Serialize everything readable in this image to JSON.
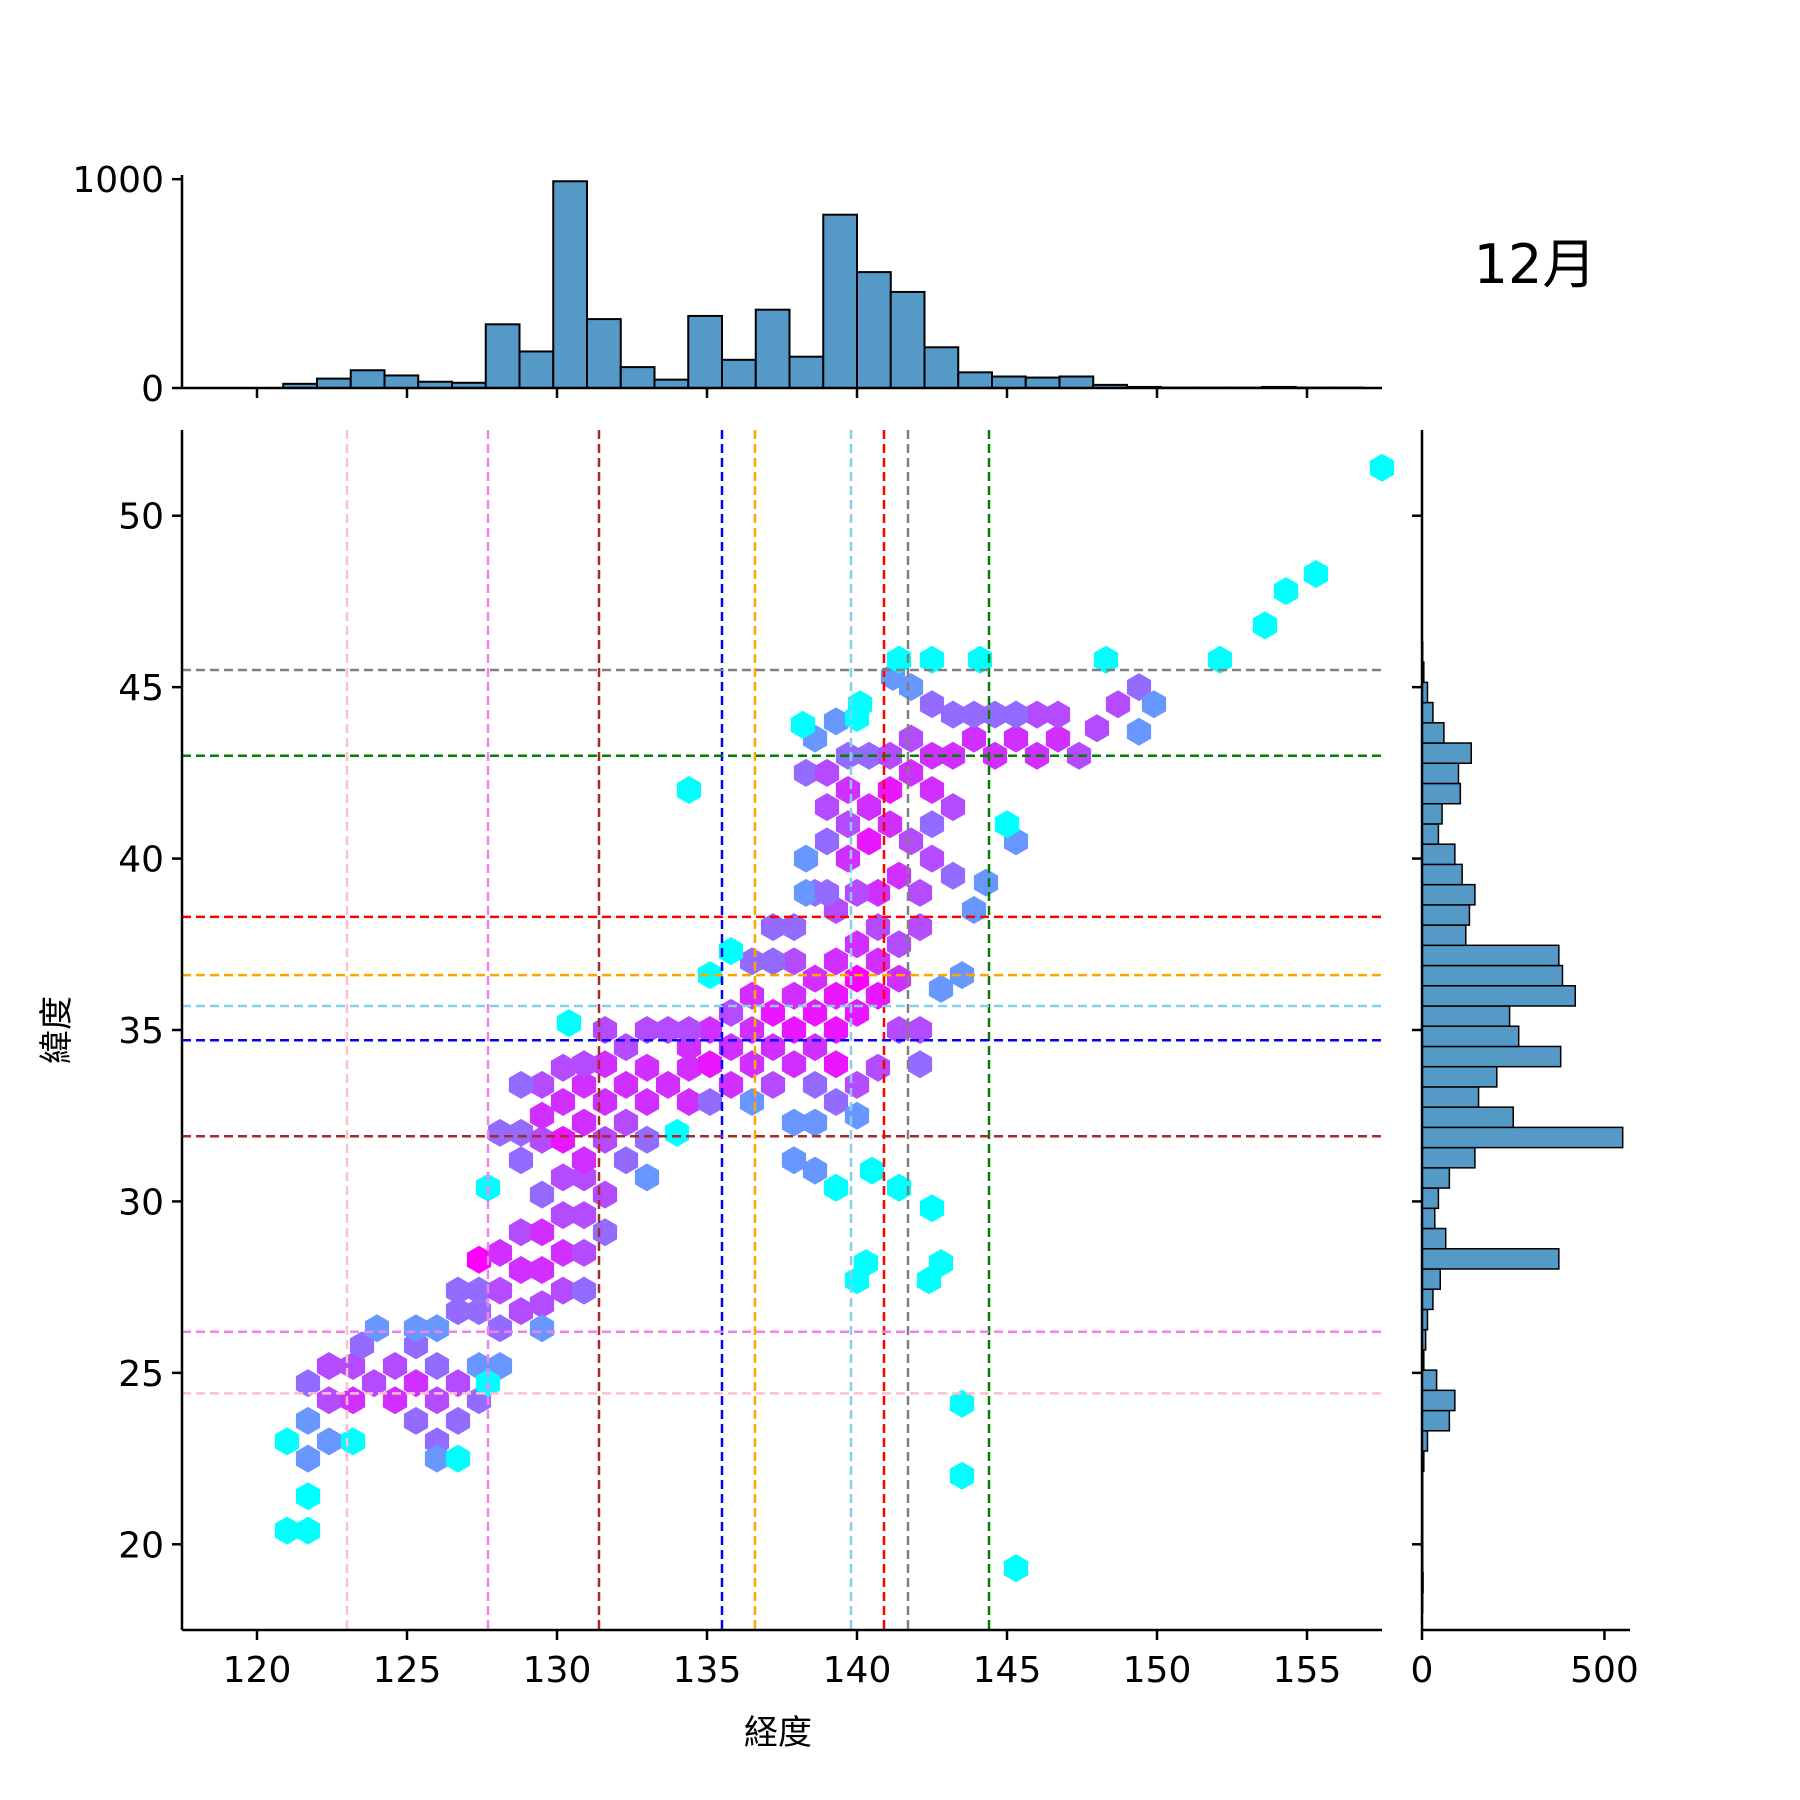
{
  "chart_data": {
    "type": "hexbin-jointplot",
    "title": "12月",
    "xlabel": "経度",
    "ylabel": "緯度",
    "xlim": [
      117.5,
      157.5
    ],
    "ylim": [
      17.5,
      52.5
    ],
    "xticks": [
      120,
      125,
      130,
      135,
      140,
      145,
      150,
      155
    ],
    "yticks": [
      20,
      25,
      30,
      35,
      40,
      45,
      50
    ],
    "top_hist": {
      "bin_start": 117.5,
      "bin_width": 1.125,
      "counts": [
        0,
        0,
        0,
        20,
        45,
        85,
        60,
        30,
        25,
        305,
        175,
        990,
        330,
        100,
        40,
        345,
        135,
        375,
        150,
        830,
        555,
        460,
        195,
        75,
        55,
        50,
        55,
        15,
        5,
        2,
        2,
        2,
        5,
        2,
        2,
        2
      ],
      "yticks": [
        0,
        1000
      ],
      "ylim": [
        0,
        1020
      ]
    },
    "right_hist": {
      "bin_start": 18.0,
      "bin_width": 0.59,
      "counts": [
        2,
        3,
        2,
        2,
        2,
        2,
        2,
        5,
        15,
        75,
        90,
        40,
        5,
        10,
        15,
        30,
        50,
        375,
        65,
        35,
        45,
        75,
        145,
        550,
        250,
        155,
        205,
        380,
        265,
        240,
        420,
        385,
        375,
        120,
        130,
        145,
        110,
        90,
        45,
        55,
        105,
        100,
        135,
        60,
        30,
        15,
        5,
        2
      ],
      "xticks": [
        0,
        500
      ],
      "xlim": [
        0,
        570
      ]
    },
    "hexbin": {
      "gridsize": 40,
      "colormap": [
        "#00ffff",
        "#ff00ff"
      ],
      "cells": [
        [
          121,
          20.4,
          1
        ],
        [
          121.7,
          20.4,
          1
        ],
        [
          121.7,
          21.4,
          1
        ],
        [
          121.7,
          22.5,
          2
        ],
        [
          121,
          23,
          1
        ],
        [
          122.4,
          23,
          2
        ],
        [
          121.7,
          23.6,
          2
        ],
        [
          121.7,
          24.7,
          3
        ],
        [
          122.4,
          24.2,
          4
        ],
        [
          122.4,
          25.2,
          4
        ],
        [
          123.2,
          24.2,
          5
        ],
        [
          123.2,
          25.2,
          4
        ],
        [
          123.5,
          25.8,
          3
        ],
        [
          123.9,
          24.7,
          4
        ],
        [
          124.6,
          24.2,
          5
        ],
        [
          124.6,
          25.2,
          4
        ],
        [
          125.3,
          24.7,
          5
        ],
        [
          126,
          24.2,
          4
        ],
        [
          126,
          25.2,
          3
        ],
        [
          125.3,
          25.8,
          3
        ],
        [
          125.3,
          26.3,
          2
        ],
        [
          126,
          26.3,
          2
        ],
        [
          124,
          26.3,
          2
        ],
        [
          123.2,
          23,
          1
        ],
        [
          125.3,
          23.6,
          3
        ],
        [
          126,
          23,
          3
        ],
        [
          126,
          22.5,
          2
        ],
        [
          126.7,
          22.5,
          1
        ],
        [
          126.7,
          23.6,
          3
        ],
        [
          126.7,
          24.7,
          4
        ],
        [
          127.4,
          24.2,
          3
        ],
        [
          127.4,
          25.2,
          2
        ],
        [
          127.4,
          26.8,
          3
        ],
        [
          126.7,
          26.8,
          3
        ],
        [
          126.7,
          27.4,
          3
        ],
        [
          127.4,
          27.4,
          3
        ],
        [
          128.1,
          26.3,
          3
        ],
        [
          128.1,
          27.4,
          4
        ],
        [
          128.8,
          26.8,
          4
        ],
        [
          128.8,
          28,
          5
        ],
        [
          127.4,
          28.3,
          7
        ],
        [
          128.1,
          28.5,
          5
        ],
        [
          128.8,
          29.1,
          4
        ],
        [
          129.5,
          28,
          5
        ],
        [
          129.5,
          29.1,
          5
        ],
        [
          130.2,
          28.5,
          5
        ],
        [
          130.2,
          27.4,
          4
        ],
        [
          129.5,
          27,
          4
        ],
        [
          130.9,
          27.4,
          3
        ],
        [
          130.9,
          28.5,
          4
        ],
        [
          130.2,
          29.6,
          4
        ],
        [
          129.5,
          30.2,
          3
        ],
        [
          130.2,
          30.7,
          4
        ],
        [
          130.9,
          29.6,
          4
        ],
        [
          130.9,
          30.7,
          4
        ],
        [
          131.6,
          29.1,
          3
        ],
        [
          131.6,
          30.2,
          4
        ],
        [
          129.5,
          26.3,
          2
        ],
        [
          128.1,
          25.2,
          2
        ],
        [
          127.7,
          24.7,
          1
        ],
        [
          127.7,
          30.4,
          1
        ],
        [
          128.8,
          31.2,
          3
        ],
        [
          128.8,
          32,
          3
        ],
        [
          129.5,
          31.8,
          4
        ],
        [
          129.5,
          32.5,
          5
        ],
        [
          130.2,
          31.8,
          6
        ],
        [
          130.2,
          32.9,
          5
        ],
        [
          130.9,
          31.2,
          5
        ],
        [
          130.9,
          32.3,
          5
        ],
        [
          130.9,
          33.4,
          5
        ],
        [
          131.6,
          31.8,
          4
        ],
        [
          131.6,
          32.9,
          5
        ],
        [
          132.3,
          31.2,
          3
        ],
        [
          132.3,
          32.3,
          4
        ],
        [
          132.3,
          33.4,
          5
        ],
        [
          133,
          30.7,
          2
        ],
        [
          133,
          31.8,
          3
        ],
        [
          133,
          32.9,
          5
        ],
        [
          133,
          33.9,
          5
        ],
        [
          133.7,
          33.4,
          5
        ],
        [
          134.4,
          32.9,
          5
        ],
        [
          134.4,
          33.9,
          5
        ],
        [
          134.4,
          34.5,
          5
        ],
        [
          135.1,
          34,
          6
        ],
        [
          135.1,
          35,
          5
        ],
        [
          135.8,
          33.4,
          5
        ],
        [
          135.8,
          34.5,
          5
        ],
        [
          135.8,
          35.5,
          4
        ],
        [
          136.5,
          34,
          5
        ],
        [
          136.5,
          35,
          5
        ],
        [
          136.5,
          36,
          5
        ],
        [
          137.2,
          33.4,
          4
        ],
        [
          137.2,
          34.5,
          5
        ],
        [
          137.2,
          35.5,
          6
        ],
        [
          137.9,
          34,
          5
        ],
        [
          137.9,
          35,
          6
        ],
        [
          137.9,
          36,
          5
        ],
        [
          137.9,
          37,
          4
        ],
        [
          138.6,
          33.4,
          3
        ],
        [
          138.6,
          34.5,
          5
        ],
        [
          138.6,
          35.5,
          6
        ],
        [
          138.6,
          36.5,
          5
        ],
        [
          139.3,
          34,
          6
        ],
        [
          139.3,
          35,
          6
        ],
        [
          139.3,
          36,
          6
        ],
        [
          139.3,
          37,
          5
        ],
        [
          140,
          35.5,
          6
        ],
        [
          140,
          36.5,
          7
        ],
        [
          140,
          37.5,
          5
        ],
        [
          140.7,
          36,
          6
        ],
        [
          140.7,
          37,
          5
        ],
        [
          140.7,
          38,
          4
        ],
        [
          141.4,
          36.5,
          5
        ],
        [
          141.4,
          37.5,
          4
        ],
        [
          141.4,
          35,
          4
        ],
        [
          142.1,
          34,
          3
        ],
        [
          142.1,
          35,
          4
        ],
        [
          142.1,
          38,
          4
        ],
        [
          142.1,
          39,
          4
        ],
        [
          141.4,
          39.5,
          5
        ],
        [
          140.7,
          39,
          5
        ],
        [
          140,
          39,
          4
        ],
        [
          139.3,
          38.5,
          4
        ],
        [
          138.6,
          39,
          3
        ],
        [
          137.9,
          38,
          3
        ],
        [
          137.2,
          37,
          3
        ],
        [
          137.2,
          38,
          3
        ],
        [
          136.5,
          37,
          3
        ],
        [
          135.8,
          37.3,
          1
        ],
        [
          135.1,
          36.6,
          1
        ],
        [
          134.4,
          35,
          4
        ],
        [
          133.7,
          35,
          4
        ],
        [
          133,
          35,
          4
        ],
        [
          132.3,
          34.5,
          4
        ],
        [
          131.6,
          34,
          5
        ],
        [
          131.6,
          35,
          4
        ],
        [
          130.9,
          34,
          4
        ],
        [
          130.2,
          33.9,
          4
        ],
        [
          129.5,
          33.4,
          4
        ],
        [
          128.8,
          33.4,
          3
        ],
        [
          128.1,
          32,
          3
        ],
        [
          130.4,
          35.2,
          1
        ],
        [
          134.4,
          42,
          1
        ],
        [
          134,
          32,
          1
        ],
        [
          135.1,
          32.9,
          3
        ],
        [
          136.5,
          32.9,
          2
        ],
        [
          137.9,
          32.3,
          2
        ],
        [
          138.6,
          32.3,
          2
        ],
        [
          137.9,
          31.2,
          2
        ],
        [
          138.6,
          30.9,
          2
        ],
        [
          139.3,
          30.4,
          1
        ],
        [
          140.5,
          30.9,
          1
        ],
        [
          141.4,
          30.4,
          1
        ],
        [
          142.5,
          29.8,
          1
        ],
        [
          142.8,
          28.2,
          1
        ],
        [
          142.4,
          27.7,
          1
        ],
        [
          140.3,
          28.2,
          1
        ],
        [
          140,
          27.7,
          1
        ],
        [
          143.5,
          24.1,
          1
        ],
        [
          143.5,
          22,
          1
        ],
        [
          145.3,
          19.3,
          1
        ],
        [
          139.3,
          32.9,
          3
        ],
        [
          140,
          33.4,
          4
        ],
        [
          140.7,
          33.9,
          4
        ],
        [
          140,
          32.5,
          2
        ],
        [
          142.8,
          36.2,
          2
        ],
        [
          143.5,
          36.6,
          2
        ],
        [
          141.8,
          40.5,
          4
        ],
        [
          142.5,
          40,
          4
        ],
        [
          143.2,
          39.5,
          3
        ],
        [
          142.5,
          41,
          3
        ],
        [
          143.2,
          41.5,
          4
        ],
        [
          142.5,
          42,
          5
        ],
        [
          141.8,
          42.5,
          5
        ],
        [
          141.1,
          42,
          6
        ],
        [
          141.1,
          41,
          5
        ],
        [
          140.4,
          41.5,
          5
        ],
        [
          140.4,
          40.5,
          6
        ],
        [
          139.7,
          41,
          4
        ],
        [
          139.7,
          42,
          5
        ],
        [
          139.7,
          40,
          5
        ],
        [
          139,
          40.5,
          3
        ],
        [
          139,
          41.5,
          4
        ],
        [
          138.3,
          40,
          2
        ],
        [
          138.3,
          39,
          2
        ],
        [
          139,
          39,
          3
        ],
        [
          138.3,
          42.5,
          3
        ],
        [
          139,
          42.5,
          4
        ],
        [
          139.7,
          43,
          3
        ],
        [
          140.4,
          43,
          3
        ],
        [
          141.1,
          43,
          4
        ],
        [
          141.8,
          43.5,
          4
        ],
        [
          142.5,
          43,
          5
        ],
        [
          143.2,
          43,
          5
        ],
        [
          143.9,
          43.5,
          5
        ],
        [
          144.6,
          43,
          5
        ],
        [
          145.3,
          43.5,
          5
        ],
        [
          146,
          43,
          5
        ],
        [
          146.7,
          43.5,
          5
        ],
        [
          147.4,
          43,
          4
        ],
        [
          146.7,
          44.2,
          4
        ],
        [
          146,
          44.2,
          4
        ],
        [
          145.3,
          44.2,
          3
        ],
        [
          144.6,
          44.2,
          3
        ],
        [
          143.9,
          44.2,
          3
        ],
        [
          143.2,
          44.2,
          3
        ],
        [
          142.5,
          44.5,
          3
        ],
        [
          141.8,
          45,
          2
        ],
        [
          141.2,
          45.3,
          2
        ],
        [
          141.4,
          45.8,
          1
        ],
        [
          142.5,
          45.8,
          1
        ],
        [
          144.1,
          45.8,
          1
        ],
        [
          148,
          43.8,
          4
        ],
        [
          148.7,
          44.5,
          4
        ],
        [
          149.4,
          45,
          3
        ],
        [
          149.4,
          43.7,
          2
        ],
        [
          148.3,
          45.8,
          1
        ],
        [
          145.3,
          40.5,
          2
        ],
        [
          145,
          41,
          1
        ],
        [
          144.3,
          39.3,
          2
        ],
        [
          143.9,
          38.5,
          2
        ],
        [
          139.3,
          44,
          2
        ],
        [
          138.6,
          43.5,
          2
        ],
        [
          138.2,
          43.9,
          1
        ],
        [
          140.1,
          44.5,
          1
        ],
        [
          140,
          44.1,
          1
        ],
        [
          149.9,
          44.5,
          2
        ],
        [
          152.1,
          45.8,
          1
        ],
        [
          153.6,
          46.8,
          1
        ],
        [
          154.3,
          47.8,
          1
        ],
        [
          155.3,
          48.3,
          1
        ],
        [
          157.5,
          51.4,
          1
        ]
      ]
    },
    "vlines": [
      {
        "x": 123.0,
        "color": "#ffc0cb"
      },
      {
        "x": 127.7,
        "color": "#ee82ee"
      },
      {
        "x": 131.4,
        "color": "#a52a2a"
      },
      {
        "x": 135.5,
        "color": "#0000ff"
      },
      {
        "x": 136.6,
        "color": "#ffa500"
      },
      {
        "x": 139.8,
        "color": "#87ceeb"
      },
      {
        "x": 140.9,
        "color": "#ff0000"
      },
      {
        "x": 141.7,
        "color": "#808080"
      },
      {
        "x": 144.4,
        "color": "#008000"
      }
    ],
    "hlines": [
      {
        "y": 24.4,
        "color": "#ffc0cb"
      },
      {
        "y": 26.2,
        "color": "#ee82ee"
      },
      {
        "y": 31.9,
        "color": "#a52a2a"
      },
      {
        "y": 34.7,
        "color": "#0000ff"
      },
      {
        "y": 35.7,
        "color": "#87ceeb"
      },
      {
        "y": 36.6,
        "color": "#ffa500"
      },
      {
        "y": 38.3,
        "color": "#ff0000"
      },
      {
        "y": 43.0,
        "color": "#008000"
      },
      {
        "y": 45.5,
        "color": "#808080"
      }
    ],
    "hist_color": "#5599c7"
  }
}
